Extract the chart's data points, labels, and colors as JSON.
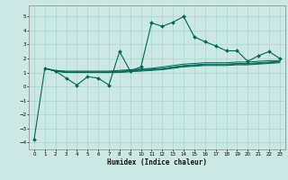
{
  "xlabel": "Humidex (Indice chaleur)",
  "bg_color": "#cce8e4",
  "grid_color": "#aad4cc",
  "line_color": "#006655",
  "xlim": [
    -0.5,
    23.5
  ],
  "ylim": [
    -4.5,
    5.8
  ],
  "yticks": [
    -4,
    -3,
    -2,
    -1,
    0,
    1,
    2,
    3,
    4,
    5
  ],
  "xticks": [
    0,
    1,
    2,
    3,
    4,
    5,
    6,
    7,
    8,
    9,
    10,
    11,
    12,
    13,
    14,
    15,
    16,
    17,
    18,
    19,
    20,
    21,
    22,
    23
  ],
  "series_main": {
    "x": [
      0,
      1,
      2,
      3,
      4,
      5,
      6,
      7,
      8,
      9,
      10,
      11,
      12,
      13,
      14,
      15,
      16,
      17,
      18,
      19,
      20,
      21,
      22,
      23
    ],
    "y": [
      -3.8,
      1.3,
      1.1,
      0.6,
      0.1,
      0.7,
      0.6,
      0.1,
      2.5,
      1.1,
      1.4,
      4.55,
      4.3,
      4.6,
      5.0,
      3.55,
      3.2,
      2.9,
      2.55,
      2.55,
      1.8,
      2.2,
      2.5,
      2.0
    ]
  },
  "series_avg1": {
    "x": [
      1,
      2,
      3,
      4,
      5,
      6,
      7,
      8,
      9,
      10,
      11,
      12,
      13,
      14,
      15,
      16,
      17,
      18,
      19,
      20,
      21,
      22,
      23
    ],
    "y": [
      1.3,
      1.15,
      1.1,
      1.1,
      1.1,
      1.1,
      1.1,
      1.15,
      1.2,
      1.25,
      1.3,
      1.4,
      1.5,
      1.6,
      1.65,
      1.7,
      1.7,
      1.7,
      1.75,
      1.75,
      1.8,
      1.85,
      1.85
    ]
  },
  "series_avg2": {
    "x": [
      1,
      2,
      3,
      4,
      5,
      6,
      7,
      8,
      9,
      10,
      11,
      12,
      13,
      14,
      15,
      16,
      17,
      18,
      19,
      20,
      21,
      22,
      23
    ],
    "y": [
      1.3,
      1.1,
      1.05,
      1.05,
      1.05,
      1.05,
      1.05,
      1.1,
      1.15,
      1.2,
      1.25,
      1.3,
      1.4,
      1.5,
      1.55,
      1.6,
      1.6,
      1.6,
      1.65,
      1.65,
      1.7,
      1.75,
      1.8
    ]
  },
  "series_avg3": {
    "x": [
      1,
      2,
      3,
      4,
      5,
      6,
      7,
      8,
      9,
      10,
      11,
      12,
      13,
      14,
      15,
      16,
      17,
      18,
      19,
      20,
      21,
      22,
      23
    ],
    "y": [
      1.3,
      1.1,
      1.0,
      1.0,
      1.0,
      1.0,
      1.0,
      1.05,
      1.1,
      1.15,
      1.2,
      1.25,
      1.35,
      1.45,
      1.5,
      1.55,
      1.55,
      1.55,
      1.6,
      1.6,
      1.65,
      1.7,
      1.75
    ]
  },
  "series_avg4": {
    "x": [
      1,
      2,
      3,
      4,
      5,
      6,
      7,
      8,
      9,
      10,
      11,
      12,
      13,
      14,
      15,
      16,
      17,
      18,
      19,
      20,
      21,
      22,
      23
    ],
    "y": [
      1.3,
      1.1,
      1.0,
      1.0,
      1.0,
      1.0,
      1.0,
      1.0,
      1.05,
      1.1,
      1.15,
      1.2,
      1.3,
      1.4,
      1.45,
      1.5,
      1.5,
      1.5,
      1.55,
      1.55,
      1.6,
      1.65,
      1.7
    ]
  }
}
